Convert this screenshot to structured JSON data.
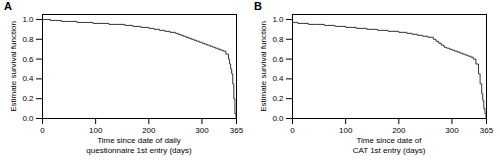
{
  "chart_data": [
    {
      "type": "step",
      "title": "A",
      "xlabel": "Time since date of daily\nquestionnaire 1st entry (days)",
      "ylabel": "Estimate survival function",
      "xlim": [
        0,
        365
      ],
      "ylim": [
        0.0,
        1.05
      ],
      "xticks": [
        0,
        100,
        200,
        300,
        365
      ],
      "yticks": [
        {
          "value": 0.0,
          "label": "0.0"
        },
        0.2,
        0.4,
        0.6,
        0.8,
        {
          "value": 1.0,
          "label": "1.0"
        }
      ],
      "color": "#333333",
      "x": [
        0,
        5,
        15,
        25,
        35,
        50,
        65,
        80,
        95,
        110,
        125,
        140,
        155,
        170,
        185,
        200,
        210,
        220,
        230,
        240,
        250,
        255,
        260,
        265,
        270,
        275,
        280,
        285,
        290,
        295,
        300,
        305,
        310,
        315,
        320,
        325,
        330,
        335,
        340,
        345,
        350,
        352,
        354,
        356,
        358,
        360,
        362,
        364,
        365
      ],
      "values": [
        1.0,
        1.0,
        0.99,
        0.99,
        0.98,
        0.98,
        0.97,
        0.97,
        0.96,
        0.96,
        0.95,
        0.95,
        0.94,
        0.93,
        0.92,
        0.91,
        0.9,
        0.89,
        0.88,
        0.87,
        0.86,
        0.85,
        0.84,
        0.83,
        0.82,
        0.81,
        0.8,
        0.79,
        0.78,
        0.77,
        0.76,
        0.75,
        0.74,
        0.73,
        0.72,
        0.71,
        0.7,
        0.69,
        0.68,
        0.65,
        0.6,
        0.55,
        0.5,
        0.45,
        0.35,
        0.2,
        0.05,
        0.01,
        0.0
      ]
    },
    {
      "type": "step",
      "title": "B",
      "xlabel": "Time since date of\nCAT 1st entry (days)",
      "ylabel": "Estimate survival function",
      "xlim": [
        0,
        365
      ],
      "ylim": [
        0.0,
        1.05
      ],
      "xticks": [
        0,
        100,
        200,
        300,
        365
      ],
      "yticks": [
        {
          "value": 0.0,
          "label": "0.0"
        },
        0.2,
        0.4,
        0.6,
        0.8,
        {
          "value": 1.0,
          "label": "1.0"
        }
      ],
      "color": "#333333",
      "x": [
        0,
        5,
        10,
        20,
        30,
        45,
        60,
        80,
        100,
        120,
        140,
        160,
        180,
        200,
        215,
        225,
        235,
        245,
        255,
        265,
        270,
        275,
        280,
        285,
        290,
        295,
        300,
        305,
        310,
        315,
        320,
        325,
        330,
        335,
        340,
        345,
        350,
        353,
        356,
        358,
        360,
        362,
        364,
        365
      ],
      "values": [
        0.97,
        0.97,
        0.96,
        0.96,
        0.95,
        0.95,
        0.94,
        0.93,
        0.92,
        0.91,
        0.9,
        0.89,
        0.88,
        0.87,
        0.86,
        0.85,
        0.84,
        0.83,
        0.82,
        0.8,
        0.78,
        0.76,
        0.74,
        0.72,
        0.71,
        0.7,
        0.69,
        0.68,
        0.67,
        0.66,
        0.65,
        0.64,
        0.63,
        0.62,
        0.6,
        0.55,
        0.45,
        0.35,
        0.25,
        0.18,
        0.1,
        0.05,
        0.01,
        0.0
      ]
    }
  ]
}
